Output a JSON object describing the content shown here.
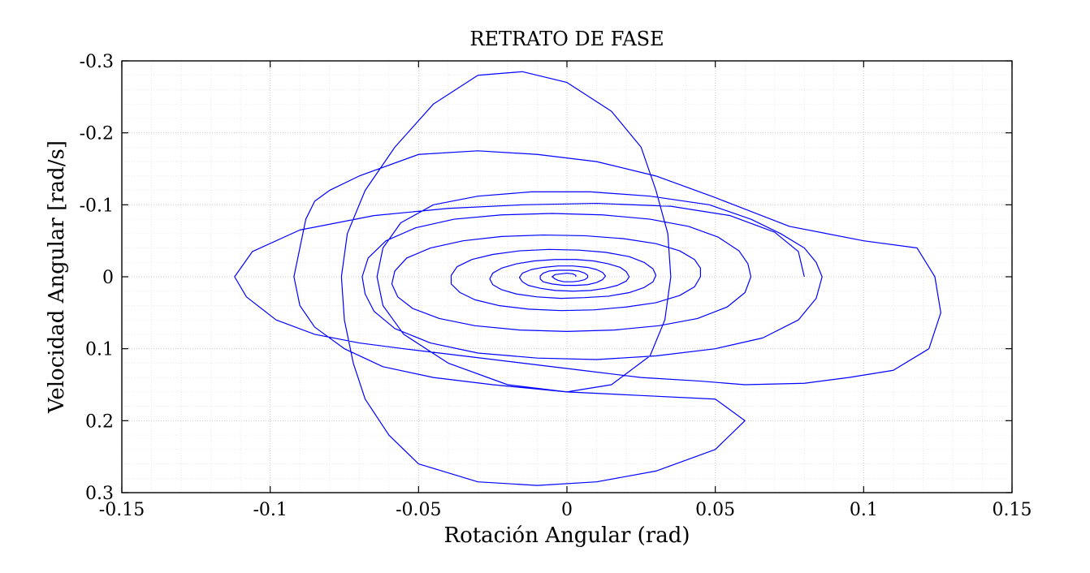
{
  "chart_data": {
    "type": "line",
    "title": "RETRATO DE FASE",
    "xlabel": "Rotación Angular (rad)",
    "ylabel": "Velocidad Angular [rad/s]",
    "xlim": [
      -0.15,
      0.15
    ],
    "ylim": [
      -0.3,
      0.3
    ],
    "y_axis_reversed": true,
    "grid": "major and minor",
    "line_color": "#0000ff",
    "x_ticks": [
      -0.15,
      -0.1,
      -0.05,
      0,
      0.05,
      0.1,
      0.15
    ],
    "x_tick_labels": [
      "-0.15",
      "-0.1",
      "-0.05",
      "0",
      "0.05",
      "0.1",
      "0.15"
    ],
    "y_ticks": [
      -0.3,
      -0.2,
      -0.1,
      0,
      0.1,
      0.2,
      0.3
    ],
    "y_tick_labels": [
      "-0.3",
      "-0.2",
      "-0.1",
      "0",
      "0.1",
      "0.2",
      "0.3"
    ],
    "series": [
      {
        "points": [
          [
            0.08,
            0.0
          ],
          [
            0.078,
            -0.035
          ],
          [
            0.07,
            -0.062
          ],
          [
            0.055,
            -0.085
          ],
          [
            0.035,
            -0.098
          ],
          [
            0.01,
            -0.102
          ],
          [
            -0.015,
            -0.1
          ],
          [
            -0.04,
            -0.095
          ],
          [
            -0.065,
            -0.085
          ],
          [
            -0.09,
            -0.065
          ],
          [
            -0.106,
            -0.035
          ],
          [
            -0.112,
            0.0
          ],
          [
            -0.108,
            0.028
          ],
          [
            -0.098,
            0.06
          ],
          [
            -0.085,
            0.08
          ],
          [
            -0.07,
            0.092
          ],
          [
            -0.055,
            0.1
          ],
          [
            -0.035,
            0.11
          ],
          [
            -0.015,
            0.12
          ],
          [
            0.005,
            0.13
          ],
          [
            0.025,
            0.14
          ],
          [
            0.045,
            0.145
          ],
          [
            0.06,
            0.15
          ],
          [
            0.08,
            0.148
          ],
          [
            0.095,
            0.14
          ],
          [
            0.11,
            0.13
          ],
          [
            0.122,
            0.1
          ],
          [
            0.126,
            0.05
          ],
          [
            0.124,
            0.0
          ],
          [
            0.118,
            -0.04
          ],
          [
            0.1,
            -0.05
          ],
          [
            0.075,
            -0.07
          ],
          [
            0.05,
            -0.11
          ],
          [
            0.03,
            -0.14
          ],
          [
            0.01,
            -0.16
          ],
          [
            -0.01,
            -0.17
          ],
          [
            -0.03,
            -0.175
          ],
          [
            -0.05,
            -0.17
          ],
          [
            -0.07,
            -0.14
          ],
          [
            -0.08,
            -0.12
          ],
          [
            -0.085,
            -0.105
          ],
          [
            -0.088,
            -0.08
          ],
          [
            -0.09,
            -0.04
          ],
          [
            -0.092,
            0.0
          ],
          [
            -0.09,
            0.04
          ],
          [
            -0.085,
            0.07
          ],
          [
            -0.075,
            0.1
          ],
          [
            -0.062,
            0.125
          ],
          [
            -0.045,
            0.14
          ],
          [
            -0.025,
            0.15
          ],
          [
            0.0,
            0.16
          ],
          [
            0.025,
            0.165
          ],
          [
            0.05,
            0.17
          ],
          [
            0.06,
            0.2
          ],
          [
            0.05,
            0.24
          ],
          [
            0.03,
            0.27
          ],
          [
            0.01,
            0.285
          ],
          [
            -0.01,
            0.29
          ],
          [
            -0.03,
            0.285
          ],
          [
            -0.05,
            0.26
          ],
          [
            -0.06,
            0.22
          ],
          [
            -0.068,
            0.17
          ],
          [
            -0.072,
            0.12
          ],
          [
            -0.075,
            0.06
          ],
          [
            -0.076,
            0.0
          ],
          [
            -0.074,
            -0.06
          ],
          [
            -0.068,
            -0.12
          ],
          [
            -0.058,
            -0.18
          ],
          [
            -0.045,
            -0.24
          ],
          [
            -0.03,
            -0.28
          ],
          [
            -0.015,
            -0.285
          ],
          [
            0.0,
            -0.27
          ],
          [
            0.015,
            -0.23
          ],
          [
            0.025,
            -0.18
          ],
          [
            0.03,
            -0.12
          ],
          [
            0.034,
            -0.06
          ],
          [
            0.035,
            0.0
          ],
          [
            0.033,
            0.06
          ],
          [
            0.028,
            0.11
          ],
          [
            0.015,
            0.15
          ],
          [
            0.0,
            0.16
          ],
          [
            -0.02,
            0.15
          ],
          [
            -0.04,
            0.12
          ],
          [
            -0.055,
            0.08
          ],
          [
            -0.062,
            0.04
          ],
          [
            -0.064,
            0.0
          ],
          [
            -0.062,
            -0.04
          ],
          [
            -0.056,
            -0.075
          ],
          [
            -0.045,
            -0.1
          ],
          [
            -0.03,
            -0.112
          ],
          [
            -0.012,
            -0.118
          ],
          [
            0.008,
            -0.118
          ],
          [
            0.028,
            -0.112
          ],
          [
            0.048,
            -0.1
          ],
          [
            0.062,
            -0.08
          ],
          [
            0.072,
            -0.06
          ],
          [
            0.08,
            -0.04
          ],
          [
            0.084,
            -0.02
          ],
          [
            0.086,
            0.0
          ],
          [
            0.084,
            0.03
          ],
          [
            0.078,
            0.06
          ],
          [
            0.066,
            0.085
          ],
          [
            0.05,
            0.1
          ],
          [
            0.03,
            0.11
          ],
          [
            0.01,
            0.115
          ],
          [
            -0.01,
            0.113
          ],
          [
            -0.03,
            0.106
          ],
          [
            -0.046,
            0.092
          ],
          [
            -0.058,
            0.072
          ],
          [
            -0.065,
            0.048
          ],
          [
            -0.068,
            0.024
          ],
          [
            -0.069,
            0.0
          ],
          [
            -0.067,
            -0.026
          ],
          [
            -0.061,
            -0.05
          ],
          [
            -0.051,
            -0.068
          ],
          [
            -0.038,
            -0.08
          ],
          [
            -0.022,
            -0.086
          ],
          [
            -0.005,
            -0.088
          ],
          [
            0.012,
            -0.086
          ],
          [
            0.028,
            -0.08
          ],
          [
            0.041,
            -0.07
          ],
          [
            0.051,
            -0.055
          ],
          [
            0.058,
            -0.036
          ],
          [
            0.061,
            -0.018
          ],
          [
            0.062,
            0.0
          ],
          [
            0.06,
            0.022
          ],
          [
            0.054,
            0.042
          ],
          [
            0.044,
            0.058
          ],
          [
            0.031,
            0.068
          ],
          [
            0.016,
            0.074
          ],
          [
            0.0,
            0.076
          ],
          [
            -0.016,
            0.074
          ],
          [
            -0.031,
            0.068
          ],
          [
            -0.043,
            0.058
          ],
          [
            -0.052,
            0.044
          ],
          [
            -0.057,
            0.028
          ],
          [
            -0.059,
            0.01
          ],
          [
            -0.058,
            -0.008
          ],
          [
            -0.054,
            -0.026
          ],
          [
            -0.046,
            -0.04
          ],
          [
            -0.035,
            -0.05
          ],
          [
            -0.022,
            -0.056
          ],
          [
            -0.008,
            -0.058
          ],
          [
            0.006,
            -0.057
          ],
          [
            0.019,
            -0.053
          ],
          [
            0.03,
            -0.046
          ],
          [
            0.038,
            -0.036
          ],
          [
            0.043,
            -0.024
          ],
          [
            0.045,
            -0.012
          ],
          [
            0.045,
            0.0
          ],
          [
            0.043,
            0.014
          ],
          [
            0.038,
            0.026
          ],
          [
            0.03,
            0.036
          ],
          [
            0.02,
            0.042
          ],
          [
            0.009,
            0.046
          ],
          [
            -0.002,
            0.047
          ],
          [
            -0.013,
            0.045
          ],
          [
            -0.023,
            0.04
          ],
          [
            -0.031,
            0.032
          ],
          [
            -0.036,
            0.022
          ],
          [
            -0.039,
            0.01
          ],
          [
            -0.039,
            -0.002
          ],
          [
            -0.037,
            -0.014
          ],
          [
            -0.032,
            -0.024
          ],
          [
            -0.025,
            -0.031
          ],
          [
            -0.016,
            -0.036
          ],
          [
            -0.006,
            -0.038
          ],
          [
            0.004,
            -0.037
          ],
          [
            0.013,
            -0.034
          ],
          [
            0.021,
            -0.028
          ],
          [
            0.026,
            -0.02
          ],
          [
            0.029,
            -0.011
          ],
          [
            0.03,
            -0.002
          ],
          [
            0.029,
            0.007
          ],
          [
            0.026,
            0.015
          ],
          [
            0.021,
            0.022
          ],
          [
            0.014,
            0.027
          ],
          [
            0.006,
            0.029
          ],
          [
            -0.002,
            0.03
          ],
          [
            -0.01,
            0.028
          ],
          [
            -0.017,
            0.024
          ],
          [
            -0.022,
            0.018
          ],
          [
            -0.025,
            0.011
          ],
          [
            -0.026,
            0.003
          ],
          [
            -0.025,
            -0.005
          ],
          [
            -0.022,
            -0.012
          ],
          [
            -0.017,
            -0.018
          ],
          [
            -0.011,
            -0.022
          ],
          [
            -0.004,
            -0.024
          ],
          [
            0.003,
            -0.024
          ],
          [
            0.009,
            -0.022
          ],
          [
            0.014,
            -0.018
          ],
          [
            0.018,
            -0.013
          ],
          [
            0.02,
            -0.007
          ],
          [
            0.021,
            0.0
          ],
          [
            0.02,
            0.006
          ],
          [
            0.017,
            0.012
          ],
          [
            0.013,
            0.016
          ],
          [
            0.008,
            0.019
          ],
          [
            0.002,
            0.02
          ],
          [
            -0.004,
            0.019
          ],
          [
            -0.009,
            0.016
          ],
          [
            -0.013,
            0.012
          ],
          [
            -0.015,
            0.007
          ],
          [
            -0.016,
            0.001
          ],
          [
            -0.015,
            -0.005
          ],
          [
            -0.012,
            -0.01
          ],
          [
            -0.008,
            -0.013
          ],
          [
            -0.003,
            -0.015
          ],
          [
            0.002,
            -0.015
          ],
          [
            0.007,
            -0.013
          ],
          [
            0.01,
            -0.01
          ],
          [
            0.012,
            -0.006
          ],
          [
            0.013,
            -0.001
          ],
          [
            0.012,
            0.004
          ],
          [
            0.01,
            0.008
          ],
          [
            0.007,
            0.011
          ],
          [
            0.003,
            0.012
          ],
          [
            -0.001,
            0.012
          ],
          [
            -0.005,
            0.01
          ],
          [
            -0.008,
            0.007
          ],
          [
            -0.009,
            0.003
          ],
          [
            -0.009,
            -0.001
          ],
          [
            -0.008,
            -0.005
          ],
          [
            -0.006,
            -0.008
          ],
          [
            -0.003,
            -0.009
          ],
          [
            0.001,
            -0.009
          ],
          [
            0.004,
            -0.008
          ],
          [
            0.006,
            -0.005
          ],
          [
            0.007,
            -0.002
          ],
          [
            0.007,
            0.001
          ],
          [
            0.006,
            0.004
          ],
          [
            0.004,
            0.006
          ],
          [
            0.002,
            0.007
          ],
          [
            -0.001,
            0.007
          ],
          [
            -0.003,
            0.005
          ],
          [
            -0.004,
            0.003
          ],
          [
            -0.005,
            0.0
          ],
          [
            -0.004,
            -0.003
          ],
          [
            -0.002,
            -0.004
          ],
          [
            0.0,
            -0.005
          ],
          [
            0.002,
            -0.004
          ],
          [
            0.003,
            -0.002
          ],
          [
            0.003,
            0.0
          ]
        ]
      }
    ]
  }
}
